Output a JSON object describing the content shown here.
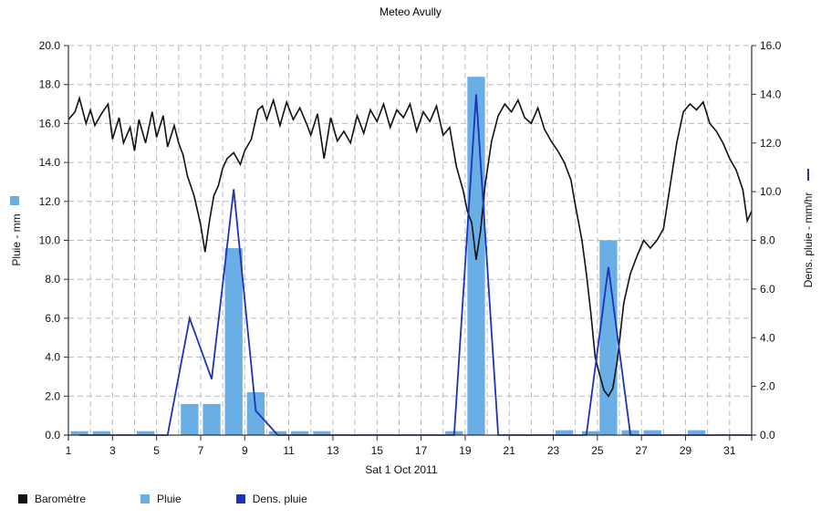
{
  "chart_data": {
    "type": "bar",
    "title": "Meteo  Avully",
    "xlabel": "Sat 1 Oct 2011",
    "ylabel_left": "Pluie - mm",
    "ylabel_right": "Dens. pluie - mm/hr",
    "x_range": [
      1,
      32
    ],
    "x_ticks": [
      "1",
      "3",
      "5",
      "7",
      "9",
      "11",
      "13",
      "15",
      "17",
      "19",
      "21",
      "23",
      "25",
      "27",
      "29",
      "31"
    ],
    "y_left_range": [
      0,
      20
    ],
    "y_left_ticks": [
      "0.0",
      "2.0",
      "4.0",
      "6.0",
      "8.0",
      "10.0",
      "12.0",
      "14.0",
      "16.0",
      "18.0",
      "20.0"
    ],
    "y_right_range": [
      0,
      16
    ],
    "y_right_ticks": [
      "0.0",
      "2.0",
      "4.0",
      "6.0",
      "8.0",
      "10.0",
      "12.0",
      "14.0",
      "16.0"
    ],
    "grid": true,
    "legend_position": "bottom-left",
    "colors": {
      "barometre": "#111111",
      "pluie": "#6aaee6",
      "densite": "#1c33b8",
      "grid": "#b9b9c8"
    },
    "series": [
      {
        "name": "Baromètre",
        "kind": "line",
        "axis": "left",
        "points": [
          [
            1,
            16.2
          ],
          [
            1.3,
            16.6
          ],
          [
            1.5,
            17.3
          ],
          [
            1.8,
            16.0
          ],
          [
            2.0,
            16.7
          ],
          [
            2.2,
            15.9
          ],
          [
            2.5,
            16.5
          ],
          [
            2.8,
            17.0
          ],
          [
            3.0,
            15.2
          ],
          [
            3.3,
            16.3
          ],
          [
            3.5,
            15.0
          ],
          [
            3.8,
            15.8
          ],
          [
            4.0,
            14.6
          ],
          [
            4.2,
            16.2
          ],
          [
            4.5,
            15.0
          ],
          [
            4.8,
            16.6
          ],
          [
            5.0,
            15.3
          ],
          [
            5.3,
            16.4
          ],
          [
            5.5,
            14.8
          ],
          [
            5.8,
            15.9
          ],
          [
            6.0,
            15.0
          ],
          [
            6.2,
            14.4
          ],
          [
            6.4,
            13.3
          ],
          [
            6.7,
            12.3
          ],
          [
            7.0,
            10.8
          ],
          [
            7.2,
            9.4
          ],
          [
            7.4,
            11.0
          ],
          [
            7.6,
            12.3
          ],
          [
            7.8,
            12.8
          ],
          [
            8.0,
            13.7
          ],
          [
            8.2,
            14.2
          ],
          [
            8.5,
            14.5
          ],
          [
            8.8,
            13.9
          ],
          [
            9.0,
            14.6
          ],
          [
            9.3,
            15.2
          ],
          [
            9.6,
            16.7
          ],
          [
            9.8,
            16.9
          ],
          [
            10.0,
            16.2
          ],
          [
            10.3,
            17.2
          ],
          [
            10.6,
            15.9
          ],
          [
            10.9,
            17.1
          ],
          [
            11.2,
            16.2
          ],
          [
            11.5,
            16.8
          ],
          [
            11.8,
            16.0
          ],
          [
            12.0,
            15.4
          ],
          [
            12.3,
            16.5
          ],
          [
            12.6,
            14.2
          ],
          [
            12.9,
            16.3
          ],
          [
            13.2,
            15.1
          ],
          [
            13.5,
            15.6
          ],
          [
            13.8,
            15.0
          ],
          [
            14.1,
            16.4
          ],
          [
            14.4,
            15.5
          ],
          [
            14.7,
            16.7
          ],
          [
            15.0,
            16.1
          ],
          [
            15.3,
            17.0
          ],
          [
            15.6,
            15.8
          ],
          [
            15.9,
            16.7
          ],
          [
            16.2,
            16.3
          ],
          [
            16.5,
            17.0
          ],
          [
            16.8,
            15.6
          ],
          [
            17.1,
            16.6
          ],
          [
            17.4,
            16.1
          ],
          [
            17.7,
            16.9
          ],
          [
            18.0,
            15.4
          ],
          [
            18.3,
            15.8
          ],
          [
            18.6,
            13.8
          ],
          [
            18.9,
            12.6
          ],
          [
            19.1,
            11.5
          ],
          [
            19.3,
            10.9
          ],
          [
            19.5,
            9.0
          ],
          [
            19.7,
            10.5
          ],
          [
            19.9,
            12.8
          ],
          [
            20.2,
            15.1
          ],
          [
            20.5,
            16.4
          ],
          [
            20.8,
            17.0
          ],
          [
            21.1,
            16.6
          ],
          [
            21.4,
            17.2
          ],
          [
            21.7,
            16.3
          ],
          [
            22.0,
            16.0
          ],
          [
            22.3,
            16.8
          ],
          [
            22.6,
            15.7
          ],
          [
            22.9,
            15.1
          ],
          [
            23.2,
            14.6
          ],
          [
            23.5,
            14.0
          ],
          [
            23.8,
            13.1
          ],
          [
            24.0,
            11.8
          ],
          [
            24.3,
            10.0
          ],
          [
            24.5,
            8.3
          ],
          [
            24.7,
            6.3
          ],
          [
            24.9,
            4.0
          ],
          [
            25.1,
            3.1
          ],
          [
            25.3,
            2.3
          ],
          [
            25.5,
            2.0
          ],
          [
            25.7,
            2.4
          ],
          [
            25.9,
            3.8
          ],
          [
            26.2,
            6.8
          ],
          [
            26.5,
            8.3
          ],
          [
            26.8,
            9.2
          ],
          [
            27.1,
            10.0
          ],
          [
            27.4,
            9.6
          ],
          [
            27.7,
            10.0
          ],
          [
            28.0,
            10.6
          ],
          [
            28.3,
            12.8
          ],
          [
            28.6,
            15.0
          ],
          [
            28.9,
            16.6
          ],
          [
            29.2,
            17.0
          ],
          [
            29.5,
            16.7
          ],
          [
            29.8,
            17.1
          ],
          [
            30.1,
            16.0
          ],
          [
            30.4,
            15.6
          ],
          [
            30.7,
            15.0
          ],
          [
            31.0,
            14.2
          ],
          [
            31.3,
            13.6
          ],
          [
            31.6,
            12.6
          ],
          [
            31.8,
            11.0
          ],
          [
            32.0,
            11.5
          ]
        ]
      },
      {
        "name": "Pluie",
        "kind": "bar",
        "axis": "left",
        "bar_width_days": 0.8,
        "points": [
          [
            1.5,
            0.2
          ],
          [
            2.5,
            0.2
          ],
          [
            4.5,
            0.2
          ],
          [
            6.5,
            1.6
          ],
          [
            7.5,
            1.6
          ],
          [
            8.5,
            9.6
          ],
          [
            9.5,
            2.2
          ],
          [
            10.5,
            0.2
          ],
          [
            11.5,
            0.2
          ],
          [
            12.5,
            0.2
          ],
          [
            18.5,
            0.2
          ],
          [
            19.5,
            18.4
          ],
          [
            23.5,
            0.25
          ],
          [
            24.7,
            0.2
          ],
          [
            25.5,
            10.0
          ],
          [
            26.5,
            0.25
          ],
          [
            27.5,
            0.25
          ],
          [
            29.5,
            0.25
          ]
        ]
      },
      {
        "name": "Dens. pluie",
        "kind": "line",
        "axis": "right",
        "points": [
          [
            1.5,
            0
          ],
          [
            5.5,
            0
          ],
          [
            6.5,
            4.8
          ],
          [
            7.5,
            2.3
          ],
          [
            8.5,
            10.1
          ],
          [
            9.5,
            1.0
          ],
          [
            10.5,
            0
          ],
          [
            18.5,
            0
          ],
          [
            19.5,
            14.0
          ],
          [
            20.5,
            0
          ],
          [
            24.5,
            0
          ],
          [
            25.5,
            6.9
          ],
          [
            26.5,
            0
          ],
          [
            32,
            0
          ]
        ]
      }
    ]
  }
}
